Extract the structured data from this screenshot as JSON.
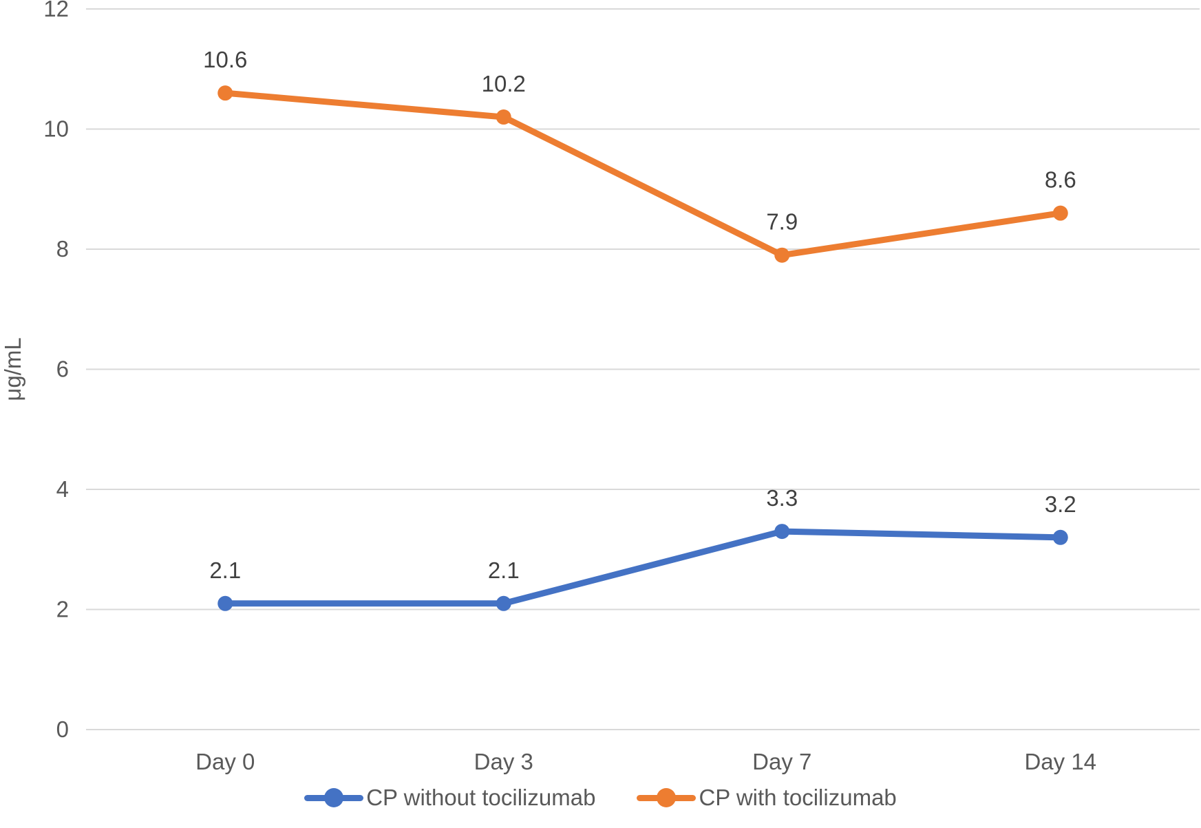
{
  "chart_data": {
    "type": "line",
    "title": "",
    "xlabel": "",
    "ylabel": "μg/mL",
    "categories": [
      "Day 0",
      "Day 3",
      "Day 7",
      "Day 14"
    ],
    "series": [
      {
        "name": "CP without tocilizumab",
        "color": "#4472C4",
        "values": [
          2.1,
          2.1,
          3.3,
          3.2
        ],
        "labels": [
          "2.1",
          "2.1",
          "3.3",
          "3.2"
        ]
      },
      {
        "name": "CP with tocilizumab",
        "color": "#ED7D31",
        "values": [
          10.6,
          10.2,
          7.9,
          8.6
        ],
        "labels": [
          "10.6",
          "10.2",
          "7.9",
          "8.6"
        ]
      }
    ],
    "yticks": [
      0,
      2,
      4,
      6,
      8,
      10,
      12
    ],
    "ylim": [
      0,
      12
    ],
    "grid": true,
    "gridline_color": "#D9D9D9",
    "axis_text_color": "#595959",
    "data_label_color": "#404040",
    "legend_position": "bottom",
    "background": "#FFFFFF"
  }
}
